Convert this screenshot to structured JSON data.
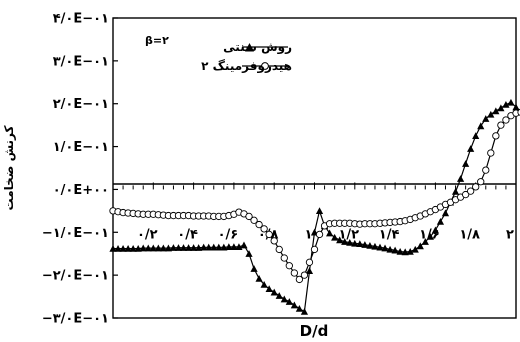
{
  "chart_data": {
    "type": "line",
    "title": "",
    "xlabel": "D/d",
    "ylabel": "کرنش ضخامت",
    "xlim": [
      0,
      2
    ],
    "ylim": [
      -0.3,
      0.4
    ],
    "annotation": "β=۲",
    "legend_position": "top-right",
    "yticks": [
      {
        "value": 0.4,
        "label": "۴/۰E−۰۱"
      },
      {
        "value": 0.3,
        "label": "۳/۰E−۰۱"
      },
      {
        "value": 0.2,
        "label": "۲/۰E−۰۱"
      },
      {
        "value": 0.1,
        "label": "۱/۰E−۰۱"
      },
      {
        "value": 0.0,
        "label": "۰/۰E+۰۰"
      },
      {
        "value": -0.1,
        "label": "−۱/۰E−۰۱"
      },
      {
        "value": -0.2,
        "label": "−۲/۰E−۰۱"
      },
      {
        "value": -0.3,
        "label": "−۳/۰E−۰۱"
      }
    ],
    "xticks": [
      {
        "value": 0.2,
        "label": "۰/۲"
      },
      {
        "value": 0.4,
        "label": "۰/۴"
      },
      {
        "value": 0.6,
        "label": "۰/۶"
      },
      {
        "value": 0.8,
        "label": "۰/۸"
      },
      {
        "value": 1.0,
        "label": "۱"
      },
      {
        "value": 1.2,
        "label": "۱/۲"
      },
      {
        "value": 1.4,
        "label": "۱/۴"
      },
      {
        "value": 1.6,
        "label": "۱/۶"
      },
      {
        "value": 1.8,
        "label": "۱/۸"
      },
      {
        "value": 2.0,
        "label": "۲"
      }
    ],
    "series": [
      {
        "name": "روش سنتی",
        "marker": "triangle",
        "x": [
          0.0,
          0.025,
          0.05,
          0.075,
          0.1,
          0.125,
          0.15,
          0.175,
          0.2,
          0.225,
          0.25,
          0.275,
          0.3,
          0.325,
          0.35,
          0.375,
          0.4,
          0.425,
          0.45,
          0.475,
          0.5,
          0.525,
          0.55,
          0.575,
          0.6,
          0.625,
          0.65,
          0.675,
          0.7,
          0.725,
          0.75,
          0.775,
          0.8,
          0.825,
          0.85,
          0.875,
          0.9,
          0.925,
          0.95,
          0.975,
          1.0,
          1.025,
          1.05,
          1.075,
          1.1,
          1.125,
          1.15,
          1.175,
          1.2,
          1.225,
          1.25,
          1.275,
          1.3,
          1.325,
          1.35,
          1.375,
          1.4,
          1.425,
          1.45,
          1.475,
          1.5,
          1.525,
          1.55,
          1.575,
          1.6,
          1.625,
          1.65,
          1.675,
          1.7,
          1.725,
          1.75,
          1.775,
          1.8,
          1.825,
          1.85,
          1.875,
          1.9,
          1.925,
          1.95,
          1.975,
          2.0,
          2.025
        ],
        "y": [
          -0.138,
          -0.138,
          -0.138,
          -0.138,
          -0.138,
          -0.138,
          -0.137,
          -0.137,
          -0.137,
          -0.137,
          -0.137,
          -0.137,
          -0.136,
          -0.136,
          -0.136,
          -0.136,
          -0.136,
          -0.136,
          -0.135,
          -0.135,
          -0.135,
          -0.135,
          -0.135,
          -0.134,
          -0.134,
          -0.134,
          -0.13,
          -0.15,
          -0.185,
          -0.208,
          -0.222,
          -0.232,
          -0.24,
          -0.248,
          -0.256,
          -0.262,
          -0.27,
          -0.278,
          -0.285,
          -0.19,
          -0.1,
          -0.05,
          -0.085,
          -0.102,
          -0.112,
          -0.118,
          -0.122,
          -0.124,
          -0.126,
          -0.127,
          -0.129,
          -0.131,
          -0.133,
          -0.135,
          -0.137,
          -0.14,
          -0.142,
          -0.145,
          -0.146,
          -0.145,
          -0.14,
          -0.132,
          -0.122,
          -0.11,
          -0.095,
          -0.075,
          -0.055,
          -0.03,
          -0.005,
          0.025,
          0.06,
          0.095,
          0.125,
          0.148,
          0.165,
          0.175,
          0.183,
          0.19,
          0.198,
          0.203,
          0.192,
          0.182
        ]
      },
      {
        "name": "هیدروفرمینگ ۲",
        "marker": "circle",
        "x": [
          0.0,
          0.025,
          0.05,
          0.075,
          0.1,
          0.125,
          0.15,
          0.175,
          0.2,
          0.225,
          0.25,
          0.275,
          0.3,
          0.325,
          0.35,
          0.375,
          0.4,
          0.425,
          0.45,
          0.475,
          0.5,
          0.525,
          0.55,
          0.575,
          0.6,
          0.625,
          0.65,
          0.675,
          0.7,
          0.725,
          0.75,
          0.775,
          0.8,
          0.825,
          0.85,
          0.875,
          0.9,
          0.925,
          0.95,
          0.975,
          1.0,
          1.025,
          1.05,
          1.075,
          1.1,
          1.125,
          1.15,
          1.175,
          1.2,
          1.225,
          1.25,
          1.275,
          1.3,
          1.325,
          1.35,
          1.375,
          1.4,
          1.425,
          1.45,
          1.475,
          1.5,
          1.525,
          1.55,
          1.575,
          1.6,
          1.625,
          1.65,
          1.675,
          1.7,
          1.725,
          1.75,
          1.775,
          1.8,
          1.825,
          1.85,
          1.875,
          1.9,
          1.925,
          1.95,
          1.975,
          2.0,
          2.025
        ],
        "y": [
          -0.05,
          -0.052,
          -0.054,
          -0.055,
          -0.056,
          -0.057,
          -0.058,
          -0.058,
          -0.058,
          -0.059,
          -0.06,
          -0.061,
          -0.061,
          -0.061,
          -0.061,
          -0.061,
          -0.062,
          -0.062,
          -0.062,
          -0.062,
          -0.063,
          -0.063,
          -0.063,
          -0.061,
          -0.058,
          -0.053,
          -0.057,
          -0.063,
          -0.072,
          -0.082,
          -0.092,
          -0.105,
          -0.12,
          -0.14,
          -0.16,
          -0.178,
          -0.195,
          -0.21,
          -0.2,
          -0.17,
          -0.14,
          -0.105,
          -0.085,
          -0.08,
          -0.079,
          -0.079,
          -0.079,
          -0.079,
          -0.08,
          -0.081,
          -0.08,
          -0.08,
          -0.08,
          -0.079,
          -0.078,
          -0.077,
          -0.076,
          -0.075,
          -0.073,
          -0.07,
          -0.066,
          -0.062,
          -0.057,
          -0.052,
          -0.047,
          -0.041,
          -0.035,
          -0.03,
          -0.024,
          -0.018,
          -0.012,
          -0.004,
          0.006,
          0.018,
          0.045,
          0.085,
          0.125,
          0.15,
          0.162,
          0.172,
          0.178,
          0.18
        ]
      }
    ]
  }
}
